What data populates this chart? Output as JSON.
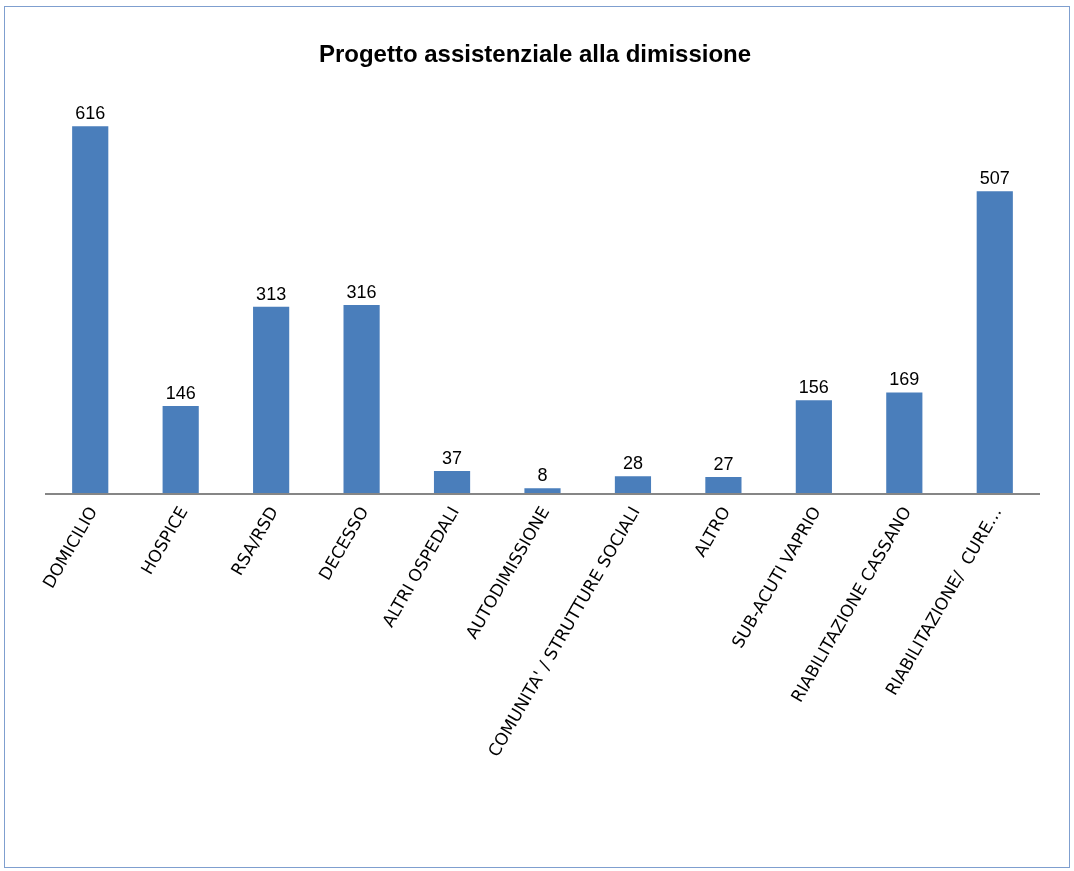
{
  "chart_data": {
    "type": "bar",
    "title": "Progetto assistenziale alla dimissione",
    "categories": [
      "DOMICILIO",
      "HOSPICE",
      "RSA/RSD",
      "DECESSO",
      "ALTRI OSPEDALI",
      "AUTODIMISSIONE",
      "COMUNITA' / STRUTTURE SOCIALI",
      "ALTRO",
      "SUB-ACUTI VAPRIO",
      "RIABILITAZIONE CASSANO",
      "RIABILITAZIONE/  CURE…"
    ],
    "values": [
      616,
      146,
      313,
      316,
      37,
      8,
      28,
      27,
      156,
      169,
      507
    ],
    "color": "#4a7ebb",
    "data_labels": true,
    "tick_labels": "x"
  }
}
